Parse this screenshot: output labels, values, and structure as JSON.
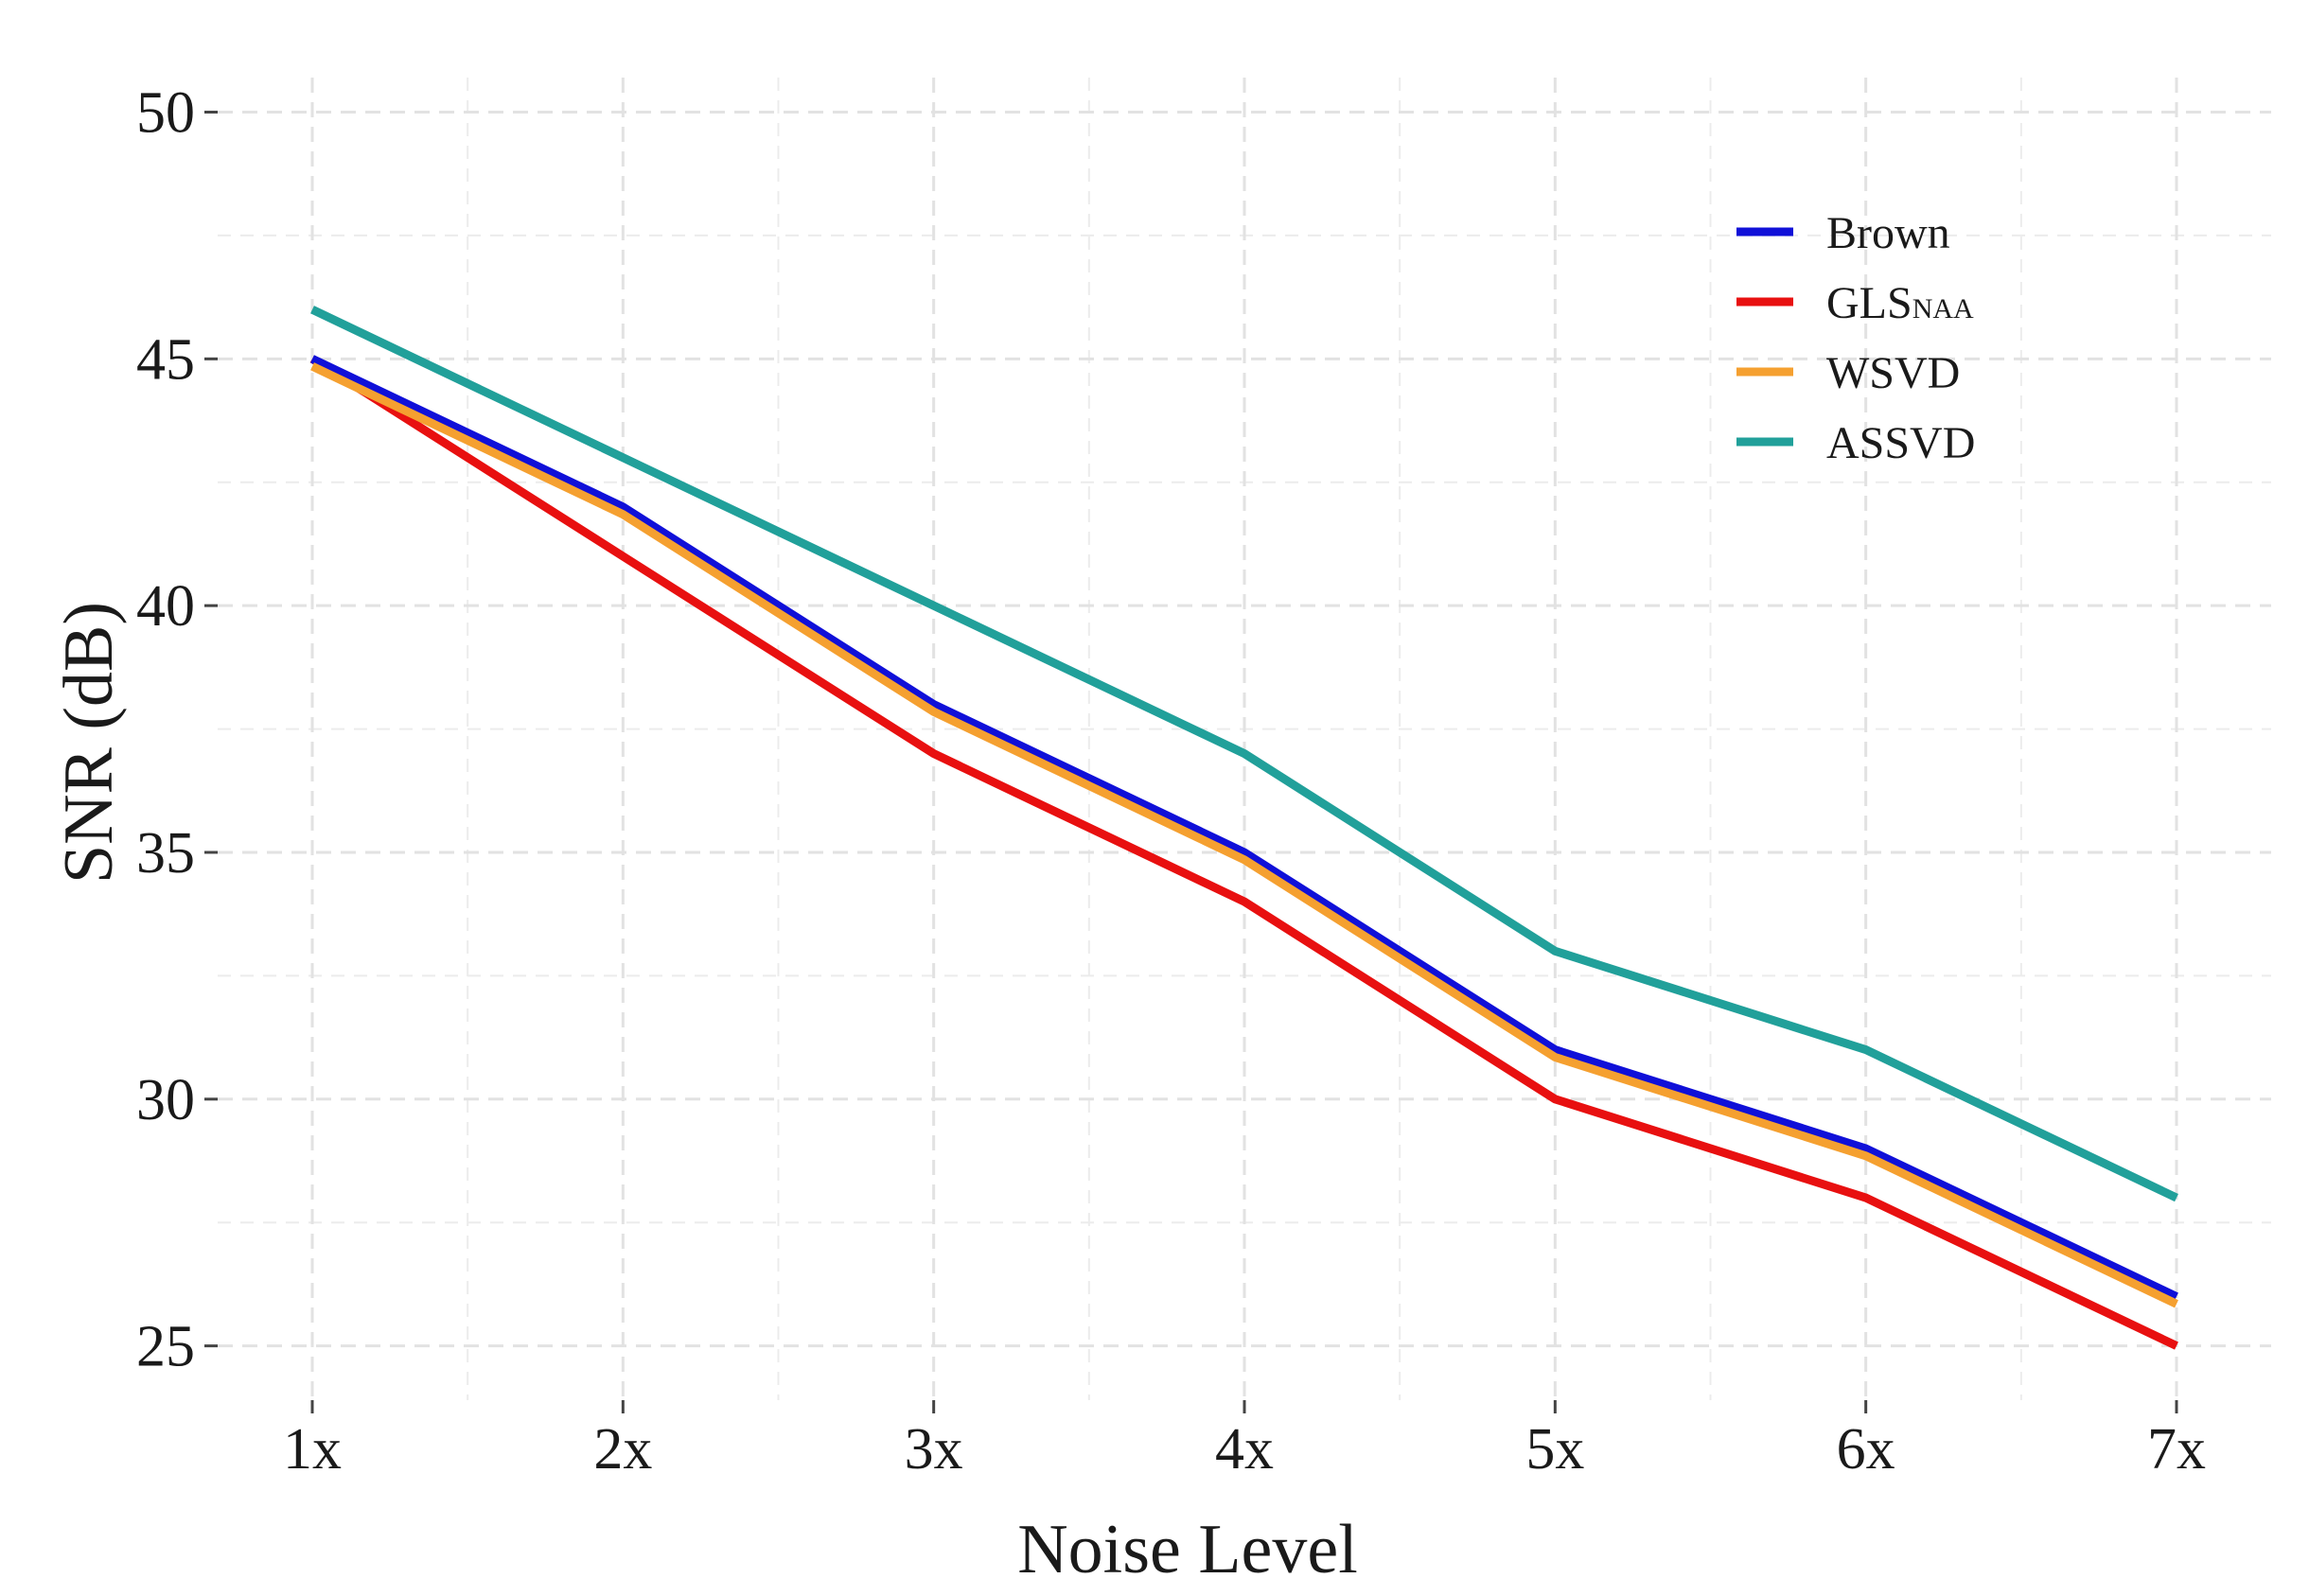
{
  "chart_data": {
    "type": "line",
    "title": "",
    "xlabel": "Noise Level",
    "ylabel": "SNR (dB)",
    "categories": [
      "1x",
      "2x",
      "3x",
      "4x",
      "5x",
      "6x",
      "7x"
    ],
    "ylim": [
      23.9,
      50.7
    ],
    "yticks": [
      25,
      30,
      35,
      40,
      45,
      50
    ],
    "ytick_labels": [
      "25",
      "30",
      "35",
      "40",
      "45",
      "50"
    ],
    "grid": true,
    "legend_position": "top-right",
    "series": [
      {
        "name": "Brown",
        "subscript": "",
        "color": "#1010d8",
        "values": [
          45,
          42,
          38,
          35,
          31,
          29,
          26
        ]
      },
      {
        "name": "GLS",
        "subscript": "NAA",
        "color": "#e81010",
        "values": [
          45,
          41,
          37,
          34,
          30,
          28,
          25
        ]
      },
      {
        "name": "WSVD",
        "subscript": "",
        "color": "#f5a030",
        "values": [
          44.85,
          41.85,
          37.85,
          34.85,
          30.85,
          28.85,
          25.85
        ]
      },
      {
        "name": "ASSVD",
        "subscript": "",
        "color": "#21a09a",
        "values": [
          46,
          43,
          40,
          37,
          33,
          31,
          28
        ]
      }
    ]
  }
}
